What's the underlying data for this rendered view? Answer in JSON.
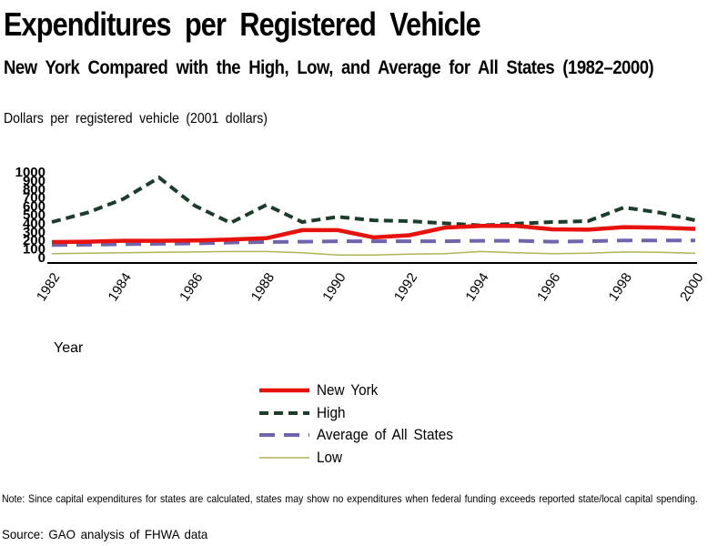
{
  "header": {
    "title": "Expenditures per Registered Vehicle",
    "subtitle": "New York Compared with the High, Low, and Average for All States (1982–2000)",
    "units_label": "Dollars per registered vehicle (2001 dollars)"
  },
  "chart_data": {
    "type": "line",
    "title": "Expenditures per Registered Vehicle",
    "subtitle": "New York Compared with the High, Low, and Average for All States (1982–2000)",
    "xlabel": "Year",
    "ylabel": "Dollars per registered vehicle (2001 dollars)",
    "ylim": [
      0,
      1000
    ],
    "y_ticks": [
      0,
      100,
      200,
      300,
      400,
      500,
      600,
      700,
      800,
      900,
      1000
    ],
    "x": [
      1982,
      1983,
      1984,
      1985,
      1986,
      1987,
      1988,
      1989,
      1990,
      1991,
      1992,
      1993,
      1994,
      1995,
      1996,
      1997,
      1998,
      1999,
      2000
    ],
    "x_tick_labels": [
      "1982",
      "1984",
      "1986",
      "1988",
      "1990",
      "1992",
      "1994",
      "1996",
      "1998",
      "2000"
    ],
    "grid": false,
    "legend_position": "bottom-center",
    "series": [
      {
        "name": "New York",
        "color": "#e8120c",
        "dash": "solid",
        "stroke_width": 4.5,
        "values": [
          175,
          180,
          190,
          190,
          195,
          205,
          220,
          315,
          315,
          230,
          255,
          345,
          365,
          365,
          325,
          320,
          350,
          345,
          330
        ]
      },
      {
        "name": "High",
        "color": "#1c3c2c",
        "dash": "short-dash",
        "stroke_width": 4,
        "values": [
          410,
          520,
          680,
          930,
          600,
          400,
          610,
          410,
          470,
          430,
          420,
          395,
          370,
          390,
          410,
          420,
          580,
          520,
          430
        ]
      },
      {
        "name": "Average of All States",
        "color": "#6f64ad",
        "dash": "long-dash",
        "stroke_width": 4,
        "values": [
          140,
          145,
          150,
          155,
          160,
          170,
          175,
          180,
          185,
          185,
          185,
          185,
          190,
          190,
          180,
          185,
          195,
          195,
          195
        ]
      },
      {
        "name": "Low",
        "color": "#b0b553",
        "dash": "solid",
        "stroke_width": 1.5,
        "values": [
          40,
          45,
          50,
          55,
          60,
          65,
          65,
          50,
          25,
          25,
          35,
          40,
          65,
          50,
          40,
          45,
          60,
          55,
          45
        ]
      }
    ],
    "axis_color": "#000000"
  },
  "footer": {
    "note": "Note: Since capital expenditures for states are calculated, states may show no expenditures when federal funding exceeds reported state/local capital spending.",
    "source": "Source: GAO analysis of FHWA data"
  }
}
